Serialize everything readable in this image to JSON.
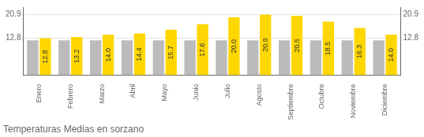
{
  "chart_data": {
    "type": "bar",
    "title": "Temperaturas Medias en sorzano",
    "categories": [
      "Enero",
      "Febrero",
      "Marzo",
      "Abril",
      "Mayo",
      "Junio",
      "Julio",
      "Agosto",
      "Septiembre",
      "Octubre",
      "Noviembre",
      "Diciembre"
    ],
    "series": [
      {
        "color": "#BBBBBB",
        "values": [
          12.0,
          12.0,
          12.0,
          12.0,
          12.0,
          12.0,
          12.0,
          12.0,
          12.0,
          12.0,
          12.0,
          12.0
        ]
      },
      {
        "color": "#FFD700",
        "values": [
          12.8,
          13.2,
          14.0,
          14.4,
          15.7,
          17.6,
          20.0,
          20.9,
          20.5,
          18.5,
          16.3,
          14.0
        ],
        "value_labels": [
          "12.8",
          "13.2",
          "14.0",
          "14.4",
          "15.7",
          "17.6",
          "20.0",
          "20.9",
          "20.5",
          "18.5",
          "16.3",
          "14.0"
        ],
        "data_labels": true
      }
    ],
    "ylim": [
      0,
      23.5
    ],
    "yticks": [
      12.8,
      20.9
    ],
    "y2lim": [
      0,
      23.5
    ],
    "y2ticks": [
      12.8,
      20.9
    ],
    "grid": true
  }
}
